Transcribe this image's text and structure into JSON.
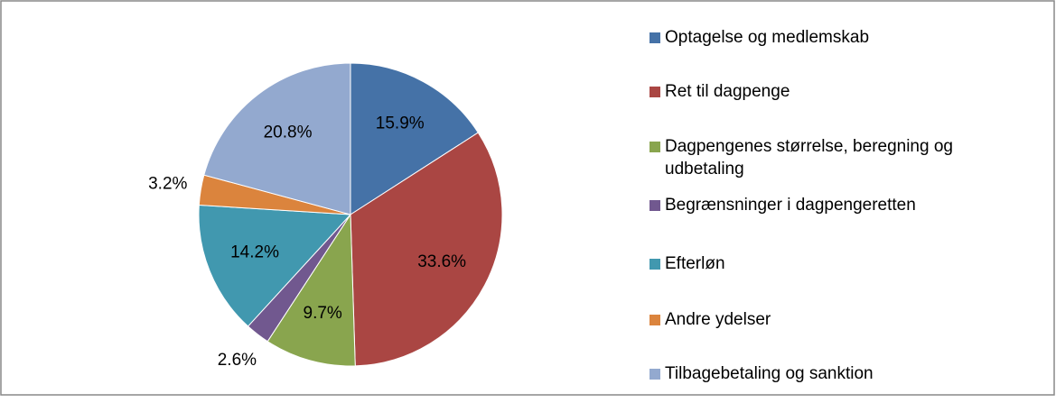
{
  "chart_data": {
    "type": "pie",
    "categories": [
      "Optagelse og medlemskab",
      "Ret til dagpenge",
      "Dagpengenes størrelse, beregning og udbetaling",
      "Begrænsninger i dagpengeretten",
      "Efterløn",
      "Andre ydelser",
      "Tilbagebetaling og sanktion"
    ],
    "values": [
      15.9,
      33.6,
      9.7,
      2.6,
      14.2,
      3.2,
      20.8
    ],
    "value_labels": [
      "15.9%",
      "33.6%",
      "9.7%",
      "2.6%",
      "14.2%",
      "3.2%",
      "20.8%"
    ],
    "colors": [
      "#4572a7",
      "#aa4643",
      "#89a54e",
      "#71588f",
      "#4198af",
      "#db843d",
      "#93a9cf"
    ],
    "legend": "right"
  }
}
